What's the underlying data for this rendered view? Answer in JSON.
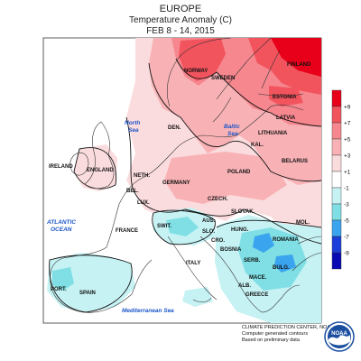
{
  "header": {
    "region": "EUROPE",
    "variable": "Temperature Anomaly (C)",
    "period": "FEB 8 - 14, 2015"
  },
  "legend": {
    "unit": "C",
    "levels": [
      "+9",
      "+7",
      "+5",
      "+3",
      "+1",
      "-1",
      "-3",
      "-5",
      "-7",
      "-9"
    ],
    "colors": [
      "#e8001a",
      "#f2545e",
      "#f6878e",
      "#f8b2b6",
      "#fbdcde",
      "#ffffff",
      "#c6f2f4",
      "#7fdfe4",
      "#3aa4ef",
      "#1b3fd8",
      "#0a0ab3"
    ]
  },
  "seas": {
    "north_sea": [
      "North",
      "Sea"
    ],
    "baltic_sea": [
      "Baltic",
      "Sea"
    ],
    "atlantic_ocean": [
      "ATLANTIC",
      "OCEAN"
    ],
    "mediterranean_sea": "Mediterranean Sea"
  },
  "countries": {
    "norway": "NORWAY",
    "sweden": "SWEDEN",
    "finland": "FINLAND",
    "estonia": "ESTONIA",
    "latvia": "LATVIA",
    "lithuania": "LITHUANIA",
    "kal": "KAL.",
    "belarus": "BELARUS",
    "den": "DEN.",
    "ireland": "IRELAND",
    "england": "ENGLAND",
    "neth": "NETH.",
    "germany": "GERMANY",
    "poland": "POLAND",
    "bel": "BEL.",
    "lux": "LUX.",
    "czech": "CZECH.",
    "slovak": "SLOVAK.",
    "france": "FRANCE",
    "swit": "SWIT.",
    "aus": "AUS.",
    "hung": "HUNG.",
    "mol": "MOL.",
    "romania": "ROMANIA",
    "slo": "SLO.",
    "cro": "CRO.",
    "bosnia": "BOSNIA",
    "serb": "SERB.",
    "bulg": "BULG.",
    "italy": "ITALY",
    "mace": "MACE.",
    "alb": "ALB.",
    "greece": "GREECE",
    "port": "PORT.",
    "spain": "SPAIN"
  },
  "credits": {
    "line1": "CLIMATE PREDICTION CENTER, NOAA",
    "line2": "Computer generated contours",
    "line3": "Based on preliminary data"
  },
  "logo": {
    "text": "NOAA"
  }
}
